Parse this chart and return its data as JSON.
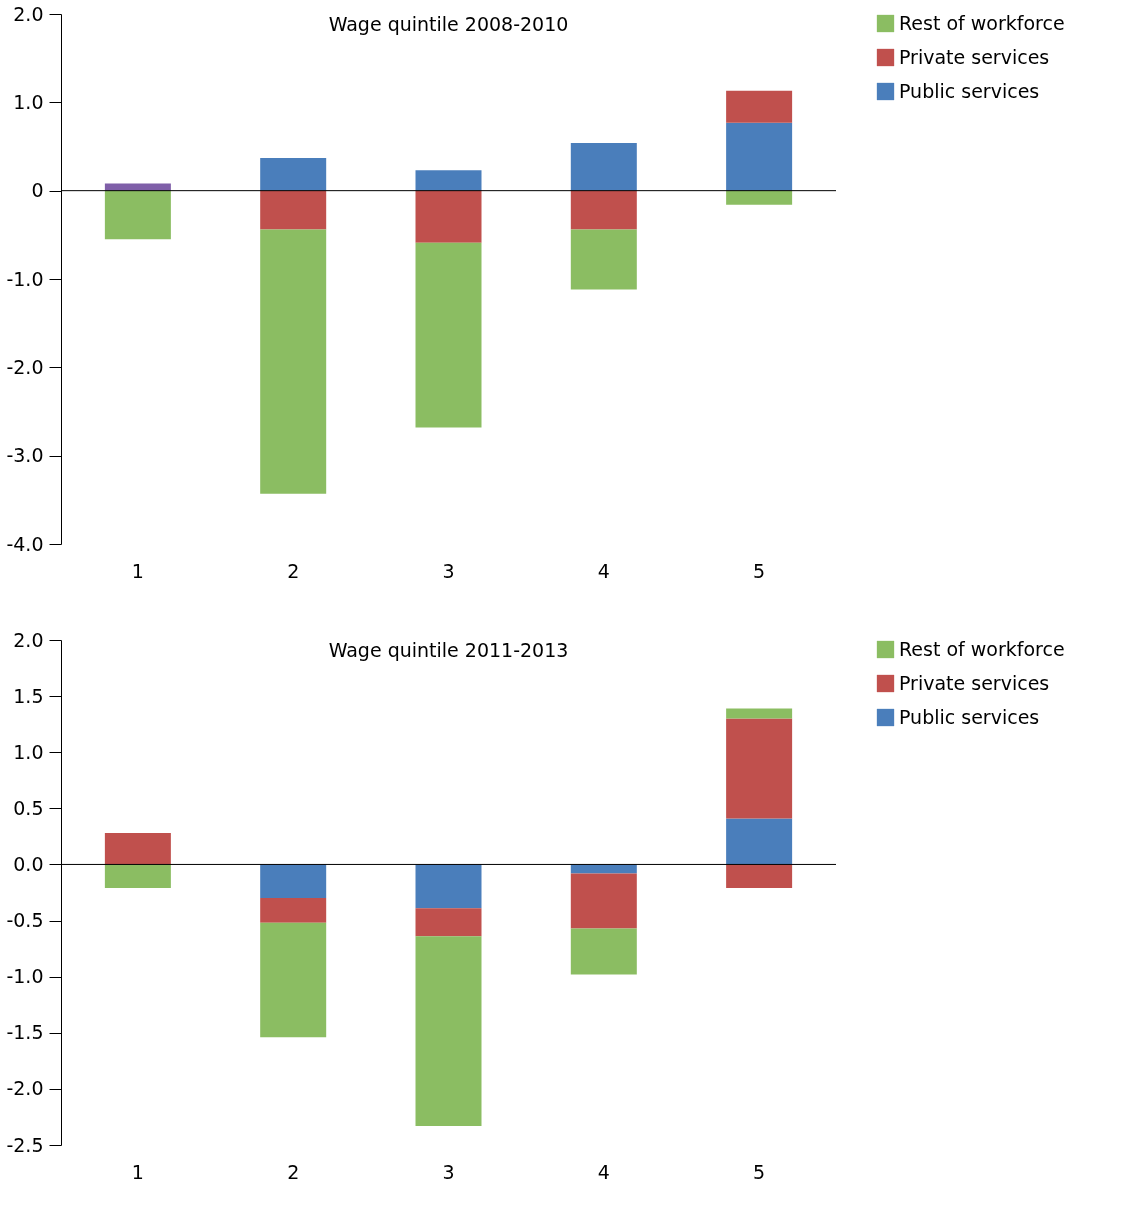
{
  "chart_data": [
    {
      "type": "bar",
      "title": "Wage quintile 2008-2010",
      "stacked": true,
      "ref_lines": [
        {
          "axis": "y",
          "value": 0
        }
      ],
      "categories": [
        "1",
        "2",
        "3",
        "4",
        "5"
      ],
      "legend": "right",
      "grid": false,
      "ylim": [
        -4.0,
        2.0
      ],
      "yticks": [
        {
          "value": -4,
          "label": "-4.0"
        },
        {
          "value": -3,
          "label": "-3.0"
        },
        {
          "value": -2,
          "label": "-2.0"
        },
        {
          "value": -1,
          "label": "-1.0"
        },
        {
          "value": 0,
          "label": "0"
        },
        {
          "value": 1,
          "label": "1.0"
        },
        {
          "value": 2,
          "label": "2.0"
        }
      ],
      "series": [
        {
          "name": "Public services",
          "color": "#4a7ebb",
          "values": [
            null,
            0.37,
            0.23,
            0.54,
            0.77
          ]
        },
        {
          "color": "#7f5fa8",
          "values": [
            0.08,
            null,
            null,
            null,
            null
          ]
        },
        {
          "name": "Private services",
          "color": "#c0504d",
          "values": [
            null,
            -0.44,
            -0.59,
            -0.44,
            0.36
          ]
        },
        {
          "name": "Rest of workforce",
          "color": "#8bbd62",
          "values": [
            -0.55,
            -2.99,
            -2.09,
            -0.68,
            -0.16
          ]
        }
      ]
    },
    {
      "type": "bar",
      "title": "Wage quintile 2011-2013",
      "stacked": true,
      "ref_lines": [
        {
          "axis": "y",
          "value": 0
        }
      ],
      "categories": [
        "1",
        "2",
        "3",
        "4",
        "5"
      ],
      "legend": "right",
      "grid": false,
      "ylim": [
        -2.5,
        2.0
      ],
      "yticks": [
        {
          "value": -2.5,
          "label": "-2.5"
        },
        {
          "value": -2,
          "label": "-2.0"
        },
        {
          "value": -1.5,
          "label": "-1.5"
        },
        {
          "value": -1,
          "label": "-1.0"
        },
        {
          "value": -0.5,
          "label": "-0.5"
        },
        {
          "value": 0,
          "label": "0.0"
        },
        {
          "value": 0.5,
          "label": "0.5"
        },
        {
          "value": 1,
          "label": "1.0"
        },
        {
          "value": 1.5,
          "label": "1.5"
        },
        {
          "value": 2,
          "label": "2.0"
        }
      ],
      "series": [
        {
          "name": "Public services",
          "color": "#4a7ebb",
          "values": [
            null,
            -0.3,
            -0.39,
            -0.08,
            0.41
          ]
        },
        {
          "name": "Private services",
          "color": "#c0504d",
          "values": [
            0.28,
            -0.22,
            -0.25,
            -0.49,
            0.89
          ]
        },
        {
          "color": "#c0504d",
          "values": [
            null,
            null,
            null,
            null,
            -0.21
          ]
        },
        {
          "name": "Rest of workforce",
          "color": "#8bbd62",
          "values": [
            -0.21,
            -1.02,
            -1.69,
            -0.41,
            0.09
          ]
        }
      ]
    }
  ]
}
